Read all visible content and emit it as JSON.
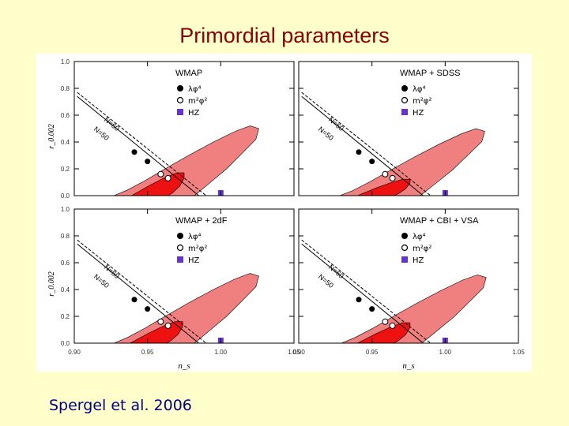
{
  "title": "Primordial parameters",
  "credit": "Spergel et al. 2006",
  "colors": {
    "title": "#8b0000",
    "credit": "#000080",
    "outer_contour": "#f08080",
    "inner_contour": "#ee1111",
    "hz_marker": "#6633cc",
    "background": "#ffffcc"
  },
  "chart_data": [
    {
      "type": "scatter",
      "panel": "WMAP",
      "legend": [
        {
          "symbol": "filled-circle",
          "label": "λφ⁴"
        },
        {
          "symbol": "open-circle",
          "label": "m²φ²"
        },
        {
          "symbol": "square",
          "label": "HZ"
        }
      ],
      "lines": [
        {
          "label": "N=60",
          "style": "solid"
        },
        {
          "label": "N=50",
          "style": "dashed"
        }
      ],
      "points": {
        "lambda_phi4": [
          {
            "x": 0.941,
            "y": 0.325
          },
          {
            "x": 0.95,
            "y": 0.255
          }
        ],
        "m2_phi2": [
          {
            "x": 0.959,
            "y": 0.16
          },
          {
            "x": 0.964,
            "y": 0.13
          }
        ],
        "hz": [
          {
            "x": 1.0,
            "y": 0.0
          }
        ]
      }
    },
    {
      "type": "scatter",
      "panel": "WMAP + SDSS",
      "legend": [
        {
          "symbol": "filled-circle",
          "label": "λφ⁴"
        },
        {
          "symbol": "open-circle",
          "label": "m²φ²"
        },
        {
          "symbol": "square",
          "label": "HZ"
        }
      ],
      "lines": [
        {
          "label": "N=60",
          "style": "solid"
        },
        {
          "label": "N=50",
          "style": "dashed"
        }
      ],
      "points": {
        "lambda_phi4": [
          {
            "x": 0.941,
            "y": 0.325
          },
          {
            "x": 0.95,
            "y": 0.255
          }
        ],
        "m2_phi2": [
          {
            "x": 0.959,
            "y": 0.16
          },
          {
            "x": 0.964,
            "y": 0.13
          }
        ],
        "hz": [
          {
            "x": 1.0,
            "y": 0.0
          }
        ]
      }
    },
    {
      "type": "scatter",
      "panel": "WMAP + 2dF",
      "legend": [
        {
          "symbol": "filled-circle",
          "label": "λφ⁴"
        },
        {
          "symbol": "open-circle",
          "label": "m²φ²"
        },
        {
          "symbol": "square",
          "label": "HZ"
        }
      ],
      "lines": [
        {
          "label": "N=60",
          "style": "solid"
        },
        {
          "label": "N=50",
          "style": "dashed"
        }
      ],
      "points": {
        "lambda_phi4": [
          {
            "x": 0.941,
            "y": 0.325
          },
          {
            "x": 0.95,
            "y": 0.255
          }
        ],
        "m2_phi2": [
          {
            "x": 0.959,
            "y": 0.16
          },
          {
            "x": 0.964,
            "y": 0.13
          }
        ],
        "hz": [
          {
            "x": 1.0,
            "y": 0.0
          }
        ]
      }
    },
    {
      "type": "scatter",
      "panel": "WMAP + CBI + VSA",
      "legend": [
        {
          "symbol": "filled-circle",
          "label": "λφ⁴"
        },
        {
          "symbol": "open-circle",
          "label": "m²φ²"
        },
        {
          "symbol": "square",
          "label": "HZ"
        }
      ],
      "lines": [
        {
          "label": "N=60",
          "style": "solid"
        },
        {
          "label": "N=50",
          "style": "dashed"
        }
      ],
      "points": {
        "lambda_phi4": [
          {
            "x": 0.941,
            "y": 0.325
          },
          {
            "x": 0.95,
            "y": 0.255
          }
        ],
        "m2_phi2": [
          {
            "x": 0.959,
            "y": 0.16
          },
          {
            "x": 0.964,
            "y": 0.13
          }
        ],
        "hz": [
          {
            "x": 1.0,
            "y": 0.0
          }
        ]
      }
    }
  ],
  "axes": {
    "xlabel": "n_s",
    "ylabel": "r_0.002",
    "xlim": [
      0.9,
      1.05
    ],
    "ylim": [
      0.0,
      1.0
    ],
    "xticks": [
      "0.90",
      "0.95",
      "1.00",
      "1.05"
    ],
    "yticks": [
      "0.0",
      "0.2",
      "0.4",
      "0.6",
      "0.8",
      "1.0"
    ],
    "ytick_values": [
      0.0,
      0.2,
      0.4,
      0.6,
      0.8,
      1.0
    ],
    "xtick_values": [
      0.9,
      0.95,
      1.0,
      1.05
    ]
  }
}
